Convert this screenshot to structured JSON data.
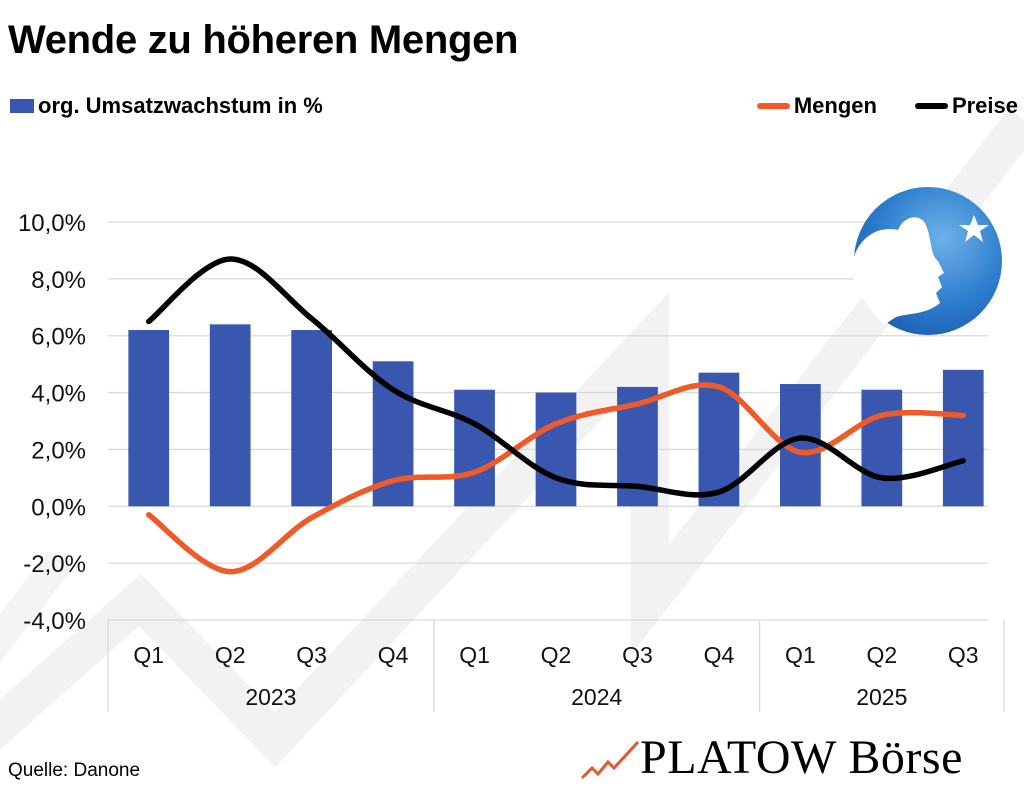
{
  "title": "Wende zu höheren Mengen",
  "source": "Quelle: Danone",
  "brand": {
    "name": "PLATOW Börse",
    "accent": "#e05a2b"
  },
  "logo": {
    "name": "Danone",
    "icon": "danone-child-star-logo"
  },
  "colors": {
    "bars": "#3a57b0",
    "mengen": "#f05a28",
    "preise": "#000000",
    "grid": "#d9d9d9"
  },
  "chart_data": {
    "type": "bar",
    "title": "Wende zu höheren Mengen",
    "xlabel": "",
    "ylabel": "",
    "ylim": [
      -4,
      10
    ],
    "yticks": [
      10,
      8,
      6,
      4,
      2,
      0,
      -2,
      -4
    ],
    "ytick_labels": [
      "10,0%",
      "8,0%",
      "6,0%",
      "4,0%",
      "2,0%",
      "0,0%",
      "-2,0%",
      "-4,0%"
    ],
    "grid": true,
    "legend_position": "top",
    "categories": [
      "Q1",
      "Q2",
      "Q3",
      "Q4",
      "Q1",
      "Q2",
      "Q3",
      "Q4",
      "Q1",
      "Q2",
      "Q3"
    ],
    "groups": [
      {
        "label": "2023",
        "count": 4
      },
      {
        "label": "2024",
        "count": 4
      },
      {
        "label": "2025",
        "count": 3
      }
    ],
    "series": [
      {
        "name": "org. Umsatzwachstum in %",
        "type": "bar",
        "values": [
          6.2,
          6.4,
          6.2,
          5.1,
          4.1,
          4.0,
          4.2,
          4.7,
          4.3,
          4.1,
          4.8
        ]
      },
      {
        "name": "Mengen",
        "type": "line",
        "smooth": true,
        "values": [
          -0.3,
          -2.3,
          -0.4,
          0.9,
          1.2,
          2.9,
          3.6,
          4.2,
          1.9,
          3.2,
          3.2
        ]
      },
      {
        "name": "Preise",
        "type": "line",
        "smooth": true,
        "values": [
          6.5,
          8.7,
          6.6,
          4.1,
          2.9,
          1.0,
          0.7,
          0.5,
          2.4,
          1.0,
          1.6
        ]
      }
    ]
  }
}
